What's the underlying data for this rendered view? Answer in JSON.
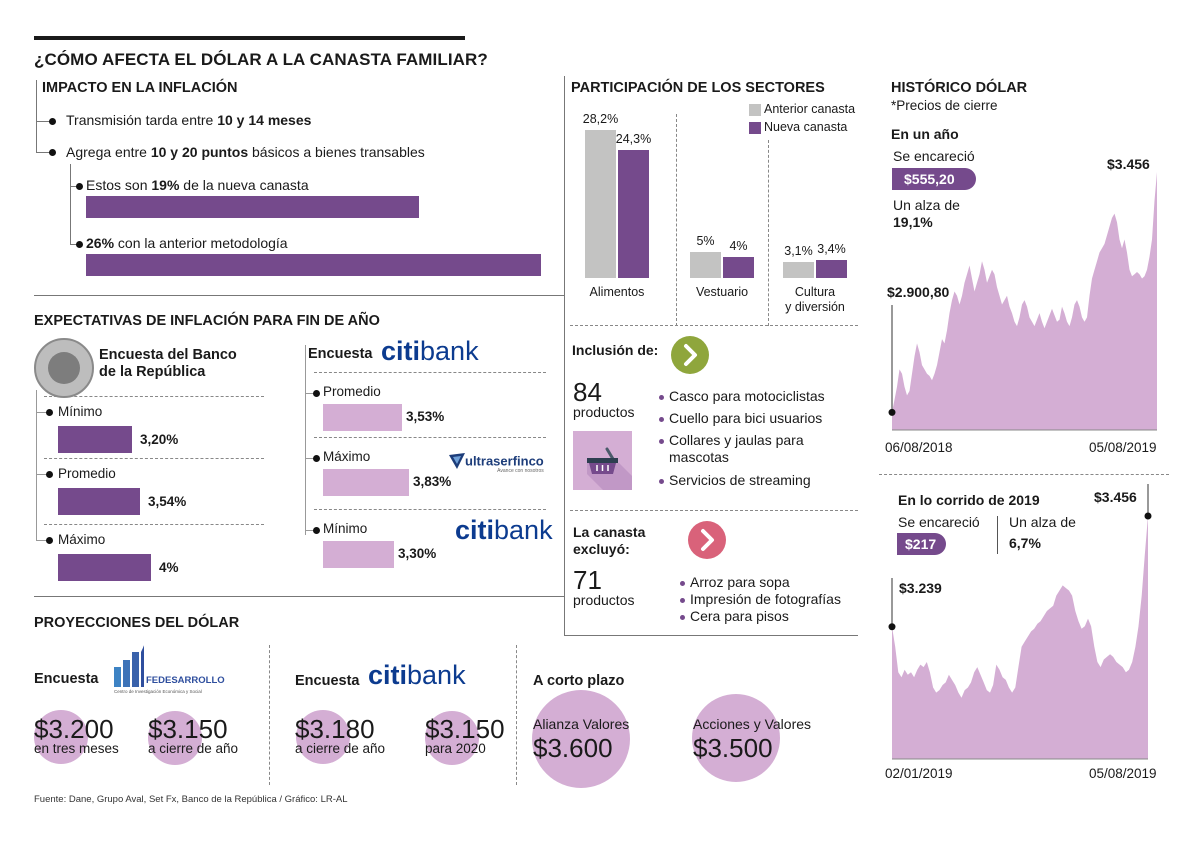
{
  "title": "¿CÓMO AFECTA EL DÓLAR A LA CANASTA FAMILIAR?",
  "impacto": {
    "heading": "IMPACTO EN LA INFLACIÓN",
    "line1_pre": "Transmisión tarda entre ",
    "line1_bold": "10 y 14 meses",
    "line2_pre": "Agrega entre ",
    "line2_bold": "10 y 20 puntos",
    "line2_post": " básicos a bienes transables",
    "sub1_pre": "Estos son ",
    "sub1_bold": "19%",
    "sub1_post": " de la nueva canasta",
    "sub1_value_pct": 19,
    "sub2_bold": "26%",
    "sub2_post": " con la anterior metodología",
    "sub2_value_pct": 26
  },
  "participacion": {
    "heading": "PARTICIPACIÓN DE LOS SECTORES",
    "legend": [
      "Anterior canasta",
      "Nueva canasta"
    ],
    "colors": {
      "anterior": "#c3c3c2",
      "nueva": "#754a8c"
    }
  },
  "chart_data": [
    {
      "type": "bar",
      "title": "PARTICIPACIÓN DE LOS SECTORES",
      "categories": [
        "Alimentos",
        "Vestuario",
        "Cultura y diversión"
      ],
      "category_lines": [
        [
          "Alimentos"
        ],
        [
          "Vestuario"
        ],
        [
          "Cultura",
          "y diversión"
        ]
      ],
      "series": [
        {
          "name": "Anterior canasta",
          "values": [
            28.2,
            5,
            3.1
          ],
          "labels": [
            "28,2%",
            "5%",
            "3,1%"
          ]
        },
        {
          "name": "Nueva canasta",
          "values": [
            24.3,
            4,
            3.4
          ],
          "labels": [
            "24,3%",
            "4%",
            "3,4%"
          ]
        }
      ],
      "legend": "top-right"
    },
    {
      "type": "area",
      "title": "En un año",
      "x_start": "06/08/2018",
      "x_end": "05/08/2019",
      "start_label": "$2.900,80",
      "end_label": "$3.456",
      "start_value": 2900.8,
      "end_value": 3456,
      "values": [
        2900.8,
        2930,
        2960,
        3000,
        2990,
        2960,
        2940,
        2950,
        2990,
        3030,
        3060,
        3040,
        3010,
        3000,
        2990,
        2985,
        2975,
        2990,
        3010,
        3040,
        3070,
        3060,
        3090,
        3130,
        3160,
        3180,
        3170,
        3150,
        3170,
        3200,
        3220,
        3240,
        3210,
        3180,
        3200,
        3220,
        3250,
        3230,
        3200,
        3215,
        3230,
        3220,
        3190,
        3170,
        3150,
        3160,
        3170,
        3145,
        3130,
        3110,
        3100,
        3120,
        3150,
        3160,
        3145,
        3120,
        3110,
        3100,
        3115,
        3130,
        3110,
        3095,
        3110,
        3125,
        3140,
        3125,
        3110,
        3115,
        3145,
        3130,
        3110,
        3100,
        3120,
        3150,
        3160,
        3145,
        3120,
        3110,
        3120,
        3170,
        3210,
        3230,
        3250,
        3270,
        3280,
        3290,
        3310,
        3330,
        3350,
        3360,
        3340,
        3300,
        3280,
        3300,
        3270,
        3230,
        3215,
        3220,
        3225,
        3220,
        3210,
        3215,
        3230,
        3260,
        3300,
        3390,
        3456
      ]
    },
    {
      "type": "area",
      "title": "En lo corrido de 2019",
      "x_start": "02/01/2019",
      "x_end": "05/08/2019",
      "start_label": "$3.239",
      "end_label": "$3.456",
      "start_value": 3239,
      "end_value": 3456,
      "values": [
        3239,
        3200,
        3150,
        3140,
        3155,
        3145,
        3150,
        3140,
        3155,
        3165,
        3160,
        3170,
        3150,
        3120,
        3110,
        3115,
        3125,
        3130,
        3145,
        3135,
        3125,
        3110,
        3100,
        3115,
        3120,
        3130,
        3150,
        3160,
        3145,
        3130,
        3115,
        3110,
        3125,
        3165,
        3155,
        3140,
        3135,
        3120,
        3110,
        3120,
        3160,
        3200,
        3210,
        3220,
        3230,
        3235,
        3245,
        3250,
        3260,
        3270,
        3275,
        3280,
        3300,
        3310,
        3320,
        3315,
        3310,
        3300,
        3270,
        3250,
        3235,
        3240,
        3255,
        3240,
        3200,
        3170,
        3160,
        3175,
        3180,
        3185,
        3180,
        3170,
        3165,
        3160,
        3150,
        3155,
        3170,
        3200,
        3240,
        3300,
        3380,
        3456
      ]
    },
    {
      "type": "bar",
      "title": "EXPECTATIVAS DE INFLACIÓN PARA FIN DE AÑO",
      "series": [
        {
          "name": "Encuesta del Banco de la República",
          "categories": [
            "Mínimo",
            "Promedio",
            "Máximo"
          ],
          "values": [
            3.2,
            3.54,
            4.0
          ],
          "labels": [
            "3,20%",
            "3,54%",
            "4%"
          ]
        },
        {
          "name": "Encuesta Citibank",
          "categories": [
            "Promedio",
            "Máximo",
            "Mínimo"
          ],
          "values": [
            3.53,
            3.83,
            3.3
          ],
          "labels": [
            "3,53%",
            "3,83%",
            "3,30%"
          ]
        }
      ]
    }
  ],
  "historico": {
    "heading": "HISTÓRICO DÓLAR",
    "subheading": "*Precios de cierre",
    "year": {
      "heading": "En un año",
      "label_encarecio": "Se encareció",
      "encarecio_value": "$555,20",
      "label_alza": "Un alza de",
      "alza_value": "19,1%"
    },
    "ytd": {
      "heading": "En lo corrido de 2019",
      "label_encarecio": "Se encareció",
      "encarecio_value": "$217",
      "label_alza": "Un alza de",
      "alza_value": "6,7%"
    }
  },
  "expectativas": {
    "heading": "EXPECTATIVAS DE INFLACIÓN PARA FIN DE AÑO",
    "br_title_line1": "Encuesta del Banco",
    "br_title_line2": "de la República",
    "citi_prefix": "Encuesta",
    "citi_logo_a": "citi",
    "citi_logo_b": "bank",
    "ultraserfinco_logo": "ultraserfinco",
    "ultraserfinco_tagline": "Avance con nosotros"
  },
  "inclusion": {
    "heading": "Inclusión de:",
    "count": "84",
    "count_label": "productos",
    "items": [
      "Casco para motociclistas",
      "Cuello para bici usuarios",
      "Collares y jaulas para mascotas",
      "Servicios de streaming"
    ],
    "icon_color": "#8fa63c"
  },
  "exclusion": {
    "heading_line1": "La canasta",
    "heading_line2": "excluyó:",
    "count": "71",
    "count_label": "productos",
    "items": [
      "Arroz para sopa",
      "Impresión de fotografías",
      "Cera para pisos"
    ],
    "icon_color": "#d9627a"
  },
  "proyecciones": {
    "heading": "PROYECCIONES DEL DÓLAR",
    "fedesarrollo": {
      "prefix": "Encuesta",
      "logo": "FEDESARROLLO",
      "logo_sub": "Centro de Investigación Económica y Social",
      "values": [
        {
          "value": "$3.200",
          "label": "en tres meses"
        },
        {
          "value": "$3.150",
          "label": "a cierre de año"
        }
      ]
    },
    "citibank": {
      "prefix": "Encuesta",
      "values": [
        {
          "value": "$3.180",
          "label": "a cierre de año"
        },
        {
          "value": "$3.150",
          "label": "para 2020"
        }
      ]
    },
    "corto_plazo": {
      "heading": "A corto plazo",
      "values": [
        {
          "label": "Alianza Valores",
          "value": "$3.600"
        },
        {
          "label": "Acciones y Valores",
          "value": "$3.500"
        }
      ]
    }
  },
  "footer": "Fuente: Dane, Grupo Aval, Set Fx, Banco de la República / Gráfico: LR-AL"
}
